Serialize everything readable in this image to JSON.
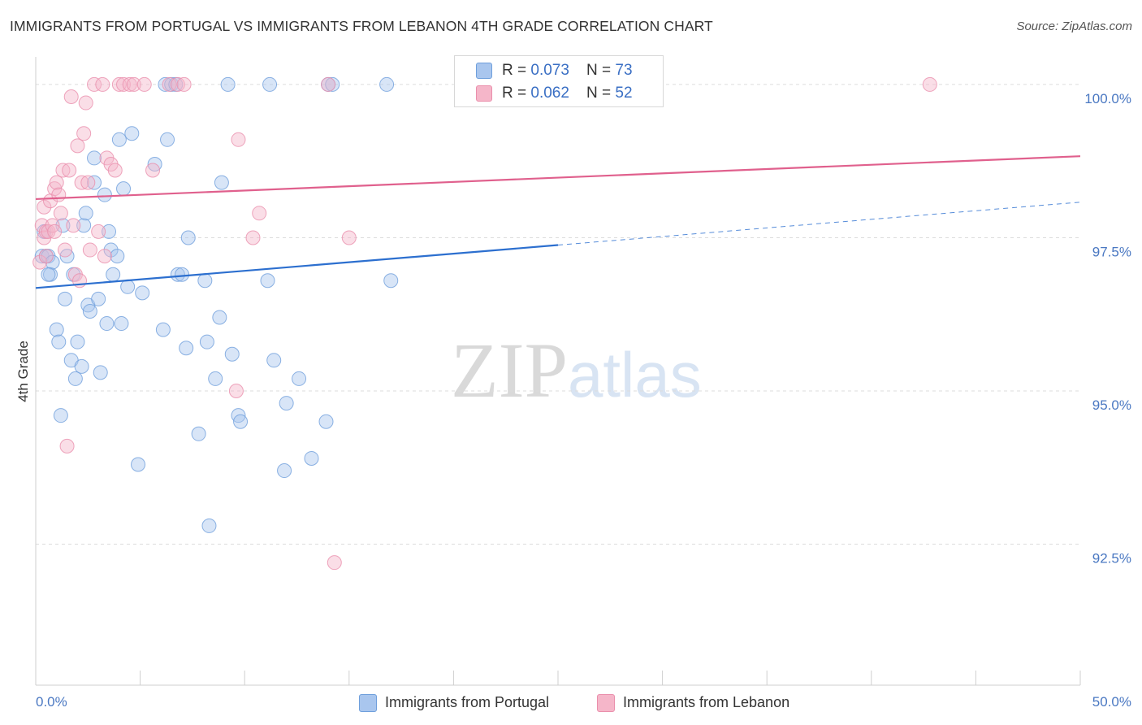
{
  "header": {
    "title": "IMMIGRANTS FROM PORTUGAL VS IMMIGRANTS FROM LEBANON 4TH GRADE CORRELATION CHART",
    "source": "Source: ZipAtlas.com"
  },
  "watermark": {
    "zip": "ZIP",
    "atlas": "atlas"
  },
  "stats": {
    "rows": [
      {
        "r_label": "R = ",
        "r_value": "0.073",
        "n_label": "N = ",
        "n_value": "73",
        "color": "#a9c6ee"
      },
      {
        "r_label": "R = ",
        "r_value": "0.062",
        "n_label": "N = ",
        "n_value": "52",
        "color": "#f5b6c9"
      }
    ]
  },
  "legend": {
    "items": [
      {
        "label": "Immigrants from Portugal",
        "color": "#a9c6ee"
      },
      {
        "label": "Immigrants from Lebanon",
        "color": "#f5b6c9"
      }
    ]
  },
  "chart_data": {
    "type": "scatter",
    "title": "IMMIGRANTS FROM PORTUGAL VS IMMIGRANTS FROM LEBANON 4TH GRADE CORRELATION CHART",
    "ylabel": "4th Grade",
    "xlabel": "",
    "xlim": [
      0,
      50
    ],
    "ylim": [
      90.2,
      100.45
    ],
    "x_tick_labels": [
      "0.0%",
      "50.0%"
    ],
    "y_ticks": [
      {
        "value": 100.0,
        "label": "100.0%"
      },
      {
        "value": 97.5,
        "label": "97.5%"
      },
      {
        "value": 95.0,
        "label": "95.0%"
      },
      {
        "value": 92.5,
        "label": "92.5%"
      }
    ],
    "grid": "horizontal-dashed",
    "legend_position": "bottom-center",
    "series": [
      {
        "name": "Immigrants from Portugal",
        "color": "#a9c6ee",
        "stroke": "#6f9fdc",
        "trend": {
          "x": [
            0,
            25
          ],
          "y": [
            96.68,
            97.38
          ],
          "dashed_extension": {
            "x": [
              25,
              50
            ],
            "y": [
              97.38,
              98.08
            ]
          },
          "color": "#2c6fcf"
        },
        "points": [
          [
            0.3,
            97.2
          ],
          [
            0.4,
            97.6
          ],
          [
            0.5,
            97.2
          ],
          [
            0.6,
            97.2
          ],
          [
            0.7,
            96.9
          ],
          [
            0.8,
            97.1
          ],
          [
            1.0,
            96.0
          ],
          [
            1.1,
            95.8
          ],
          [
            1.4,
            96.5
          ],
          [
            1.5,
            97.2
          ],
          [
            1.7,
            95.5
          ],
          [
            1.8,
            96.9
          ],
          [
            1.9,
            95.2
          ],
          [
            2.0,
            95.8
          ],
          [
            2.2,
            95.4
          ],
          [
            2.3,
            97.7
          ],
          [
            2.4,
            97.9
          ],
          [
            2.5,
            96.4
          ],
          [
            2.6,
            96.3
          ],
          [
            2.8,
            98.4
          ],
          [
            2.8,
            98.8
          ],
          [
            3.0,
            96.5
          ],
          [
            3.1,
            95.3
          ],
          [
            3.3,
            98.2
          ],
          [
            3.4,
            96.1
          ],
          [
            3.5,
            97.6
          ],
          [
            3.6,
            97.3
          ],
          [
            3.7,
            96.9
          ],
          [
            3.9,
            97.2
          ],
          [
            4.0,
            99.1
          ],
          [
            4.1,
            96.1
          ],
          [
            4.2,
            98.3
          ],
          [
            4.4,
            96.7
          ],
          [
            4.6,
            99.2
          ],
          [
            4.9,
            93.8
          ],
          [
            5.1,
            96.6
          ],
          [
            5.7,
            98.7
          ],
          [
            6.1,
            96.0
          ],
          [
            6.2,
            100.0
          ],
          [
            6.3,
            99.1
          ],
          [
            6.5,
            100.0
          ],
          [
            6.7,
            100.0
          ],
          [
            6.8,
            96.9
          ],
          [
            7.0,
            96.9
          ],
          [
            7.2,
            95.7
          ],
          [
            7.3,
            97.5
          ],
          [
            7.8,
            94.3
          ],
          [
            8.1,
            96.8
          ],
          [
            8.2,
            95.8
          ],
          [
            8.3,
            92.8
          ],
          [
            8.6,
            95.2
          ],
          [
            8.8,
            96.2
          ],
          [
            8.9,
            98.4
          ],
          [
            9.2,
            100.0
          ],
          [
            9.4,
            95.6
          ],
          [
            9.7,
            94.6
          ],
          [
            9.8,
            94.5
          ],
          [
            11.1,
            96.8
          ],
          [
            11.2,
            100.0
          ],
          [
            11.4,
            95.5
          ],
          [
            11.9,
            93.7
          ],
          [
            12.0,
            94.8
          ],
          [
            12.6,
            95.2
          ],
          [
            13.2,
            93.9
          ],
          [
            13.9,
            94.5
          ],
          [
            14.0,
            100.0
          ],
          [
            14.2,
            100.0
          ],
          [
            16.8,
            100.0
          ],
          [
            17.0,
            96.8
          ],
          [
            1.2,
            94.6
          ],
          [
            0.6,
            96.9
          ],
          [
            1.3,
            97.7
          ],
          [
            25.0,
            100.0
          ]
        ]
      },
      {
        "name": "Immigrants from Lebanon",
        "color": "#f5b6c9",
        "stroke": "#ea8fac",
        "trend": {
          "x": [
            0,
            50
          ],
          "y": [
            98.13,
            98.83
          ],
          "color": "#e0608d"
        },
        "points": [
          [
            0.2,
            97.1
          ],
          [
            0.3,
            97.7
          ],
          [
            0.4,
            97.5
          ],
          [
            0.4,
            98.0
          ],
          [
            0.5,
            97.2
          ],
          [
            0.5,
            97.6
          ],
          [
            0.6,
            97.6
          ],
          [
            0.7,
            98.1
          ],
          [
            0.8,
            97.7
          ],
          [
            0.9,
            98.3
          ],
          [
            1.0,
            98.4
          ],
          [
            1.1,
            98.2
          ],
          [
            1.2,
            97.9
          ],
          [
            1.3,
            98.6
          ],
          [
            1.4,
            97.3
          ],
          [
            1.5,
            94.1
          ],
          [
            1.6,
            98.6
          ],
          [
            1.7,
            99.8
          ],
          [
            1.8,
            97.7
          ],
          [
            1.9,
            96.9
          ],
          [
            2.0,
            99.0
          ],
          [
            2.1,
            96.8
          ],
          [
            2.2,
            98.4
          ],
          [
            2.3,
            99.2
          ],
          [
            2.4,
            99.7
          ],
          [
            2.5,
            98.4
          ],
          [
            2.6,
            97.3
          ],
          [
            2.8,
            100.0
          ],
          [
            3.0,
            97.6
          ],
          [
            3.2,
            100.0
          ],
          [
            3.3,
            97.2
          ],
          [
            3.4,
            98.8
          ],
          [
            3.6,
            98.7
          ],
          [
            3.8,
            98.6
          ],
          [
            4.0,
            100.0
          ],
          [
            4.2,
            100.0
          ],
          [
            4.5,
            100.0
          ],
          [
            4.7,
            100.0
          ],
          [
            5.2,
            100.0
          ],
          [
            5.6,
            98.6
          ],
          [
            6.4,
            100.0
          ],
          [
            6.8,
            100.0
          ],
          [
            7.1,
            100.0
          ],
          [
            9.6,
            95.0
          ],
          [
            9.7,
            99.1
          ],
          [
            10.4,
            97.5
          ],
          [
            10.7,
            97.9
          ],
          [
            14.0,
            100.0
          ],
          [
            14.3,
            92.2
          ],
          [
            15.0,
            97.5
          ],
          [
            42.8,
            100.0
          ],
          [
            0.9,
            97.6
          ]
        ]
      }
    ]
  }
}
